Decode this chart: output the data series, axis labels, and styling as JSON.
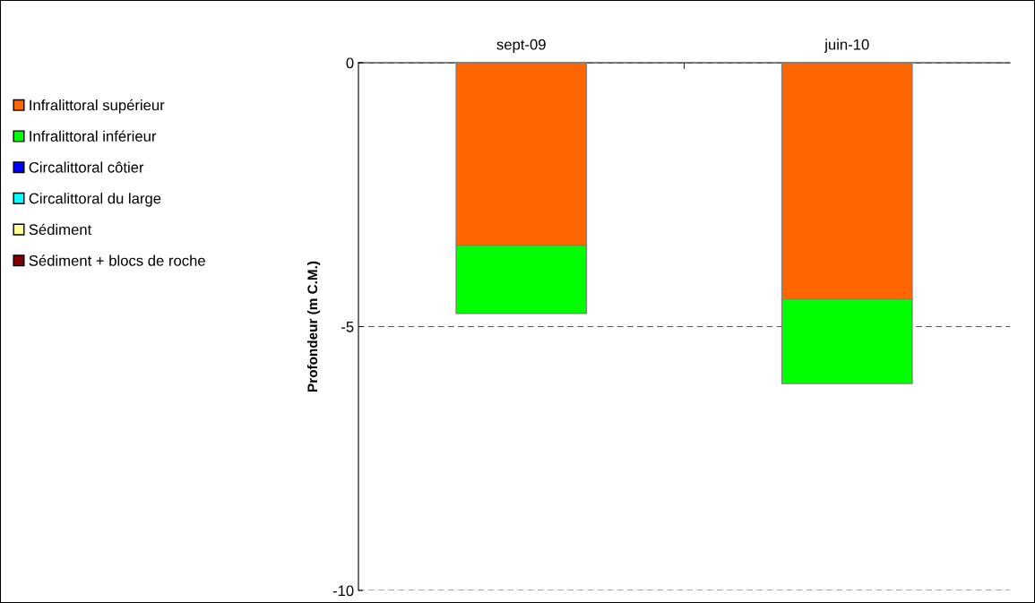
{
  "chart_data": {
    "type": "bar",
    "stacked": true,
    "ylabel": "Profondeur (m C.M.)",
    "categories": [
      "sept-09",
      "juin-10"
    ],
    "series": [
      {
        "name": "Infralittoral supérieur",
        "color": "#ff6600",
        "values": [
          -3.46,
          -4.48
        ]
      },
      {
        "name": "Infralittoral inférieur",
        "color": "#00ff00",
        "values": [
          -1.29,
          -1.6
        ]
      },
      {
        "name": "Circalittoral côtier",
        "color": "#0000ff",
        "values": [
          null,
          null
        ]
      },
      {
        "name": "Circalittoral du large",
        "color": "#00ffff",
        "values": [
          null,
          null
        ]
      },
      {
        "name": "Sédiment",
        "color": "#ffff99",
        "values": [
          null,
          null
        ]
      },
      {
        "name": "Sédiment + blocs de roche",
        "color": "#800000",
        "values": [
          null,
          null
        ]
      }
    ],
    "ylim": [
      -10,
      0
    ],
    "yticks": [
      -10,
      -5,
      0
    ],
    "grid": "y",
    "legend": "left"
  }
}
